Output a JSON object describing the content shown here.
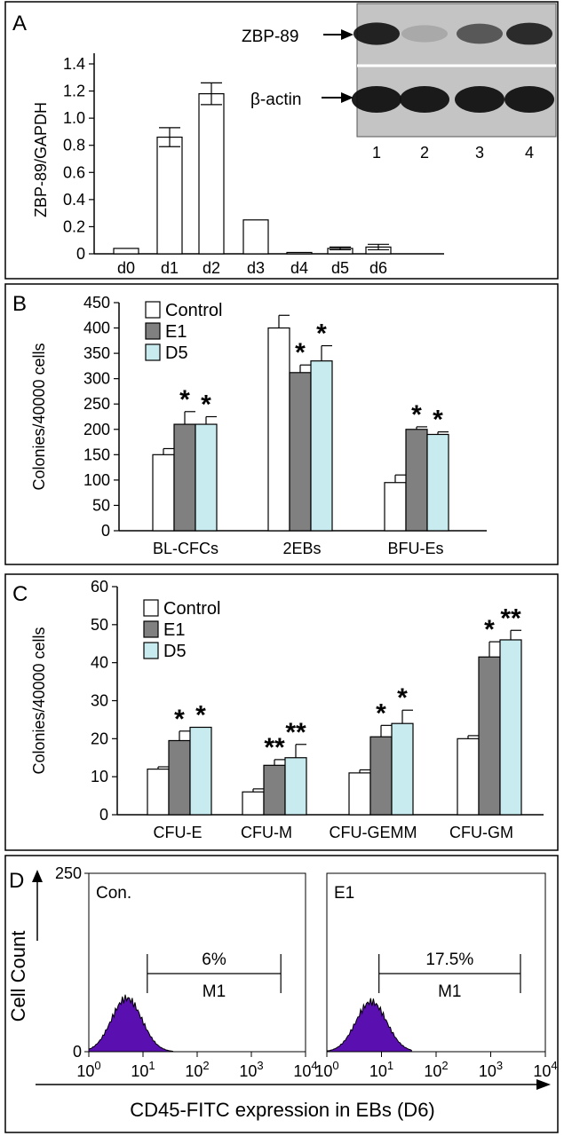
{
  "figure": {
    "panels": [
      "A",
      "B",
      "C",
      "D"
    ]
  },
  "chart_data": [
    {
      "panel": "A",
      "type": "bar",
      "ylabel": "ZBP-89/GAPDH",
      "ylim": [
        0,
        1.4
      ],
      "yticks": [
        "0",
        "0.2",
        "0.4",
        "0.6",
        "0.8",
        "1.0",
        "1.2",
        "1.4"
      ],
      "categories": [
        "d0",
        "d1",
        "d2",
        "d3",
        "d4",
        "d5",
        "d6"
      ],
      "values": [
        0.04,
        0.86,
        1.18,
        0.25,
        0.01,
        0.04,
        0.05
      ],
      "errors": [
        0.0,
        0.07,
        0.08,
        0.0,
        0.0,
        0.01,
        0.02
      ],
      "blot": {
        "row_labels": [
          "ZBP-89",
          "β-actin"
        ],
        "lanes": [
          "1",
          "2",
          "3",
          "4"
        ],
        "zbp89_intensity": [
          0.9,
          0.15,
          0.6,
          0.85
        ],
        "actin_intensity": [
          0.95,
          0.95,
          0.95,
          0.95
        ]
      }
    },
    {
      "panel": "B",
      "type": "bar",
      "ylabel": "Colonies/40000 cells",
      "ylim": [
        0,
        450
      ],
      "yticks": [
        "0",
        "50",
        "100",
        "150",
        "200",
        "250",
        "300",
        "350",
        "400",
        "450"
      ],
      "categories": [
        "BL-CFCs",
        "2EBs",
        "BFU-Es"
      ],
      "series": [
        {
          "name": "Control",
          "values": [
            150,
            400,
            95
          ],
          "errors": [
            12,
            25,
            15
          ],
          "sig": [
            "",
            "",
            ""
          ]
        },
        {
          "name": "E1",
          "values": [
            210,
            312,
            200
          ],
          "errors": [
            25,
            15,
            5
          ],
          "sig": [
            "*",
            "*",
            "*"
          ]
        },
        {
          "name": "D5",
          "values": [
            210,
            335,
            190
          ],
          "errors": [
            15,
            30,
            5
          ],
          "sig": [
            "*",
            "*",
            "*"
          ]
        }
      ],
      "colors": [
        "#ffffff",
        "#808080",
        "#c7ebee"
      ]
    },
    {
      "panel": "C",
      "type": "bar",
      "ylabel": "Colonies/40000 cells",
      "ylim": [
        0,
        60
      ],
      "yticks": [
        "0",
        "10",
        "20",
        "30",
        "40",
        "50",
        "60"
      ],
      "categories": [
        "CFU-E",
        "CFU-M",
        "CFU-GEMM",
        "CFU-GM"
      ],
      "series": [
        {
          "name": "Control",
          "values": [
            12,
            6,
            11,
            20
          ],
          "errors": [
            0.6,
            0.8,
            0.8,
            0.8
          ],
          "sig": [
            "",
            "",
            "",
            ""
          ]
        },
        {
          "name": "E1",
          "values": [
            19.5,
            13,
            20.5,
            41.5
          ],
          "errors": [
            2.5,
            1.5,
            3,
            4
          ],
          "sig": [
            "*",
            "**",
            "*",
            "*"
          ]
        },
        {
          "name": "D5",
          "values": [
            23,
            15,
            24,
            46
          ],
          "errors": [
            0,
            3.5,
            3.5,
            2.5
          ],
          "sig": [
            "*",
            "**",
            "*",
            "**"
          ]
        }
      ],
      "colors": [
        "#ffffff",
        "#808080",
        "#c7ebee"
      ]
    },
    {
      "panel": "D",
      "type": "area",
      "ylabel": "Cell Count",
      "xlabel": "CD45-FITC expression in EBs (D6)",
      "xscale": "log",
      "xlim": [
        1,
        10000
      ],
      "ylim": [
        0,
        250
      ],
      "yticks": [
        "0",
        "250"
      ],
      "xtick_base": "10",
      "xtick_exps": [
        "0",
        "1",
        "2",
        "3",
        "4"
      ],
      "fill_color": "#5a0fb0",
      "subplots": [
        {
          "label": "Con.",
          "gate_name": "M1",
          "gate_pct": "6%",
          "gate_range": [
            12,
            3500
          ],
          "peak_x": 5.0,
          "peak_y": 75
        },
        {
          "label": "E1",
          "gate_name": "M1",
          "gate_pct": "17.5%",
          "gate_range": [
            9,
            3500
          ],
          "peak_x": 6.5,
          "peak_y": 70
        }
      ]
    }
  ]
}
